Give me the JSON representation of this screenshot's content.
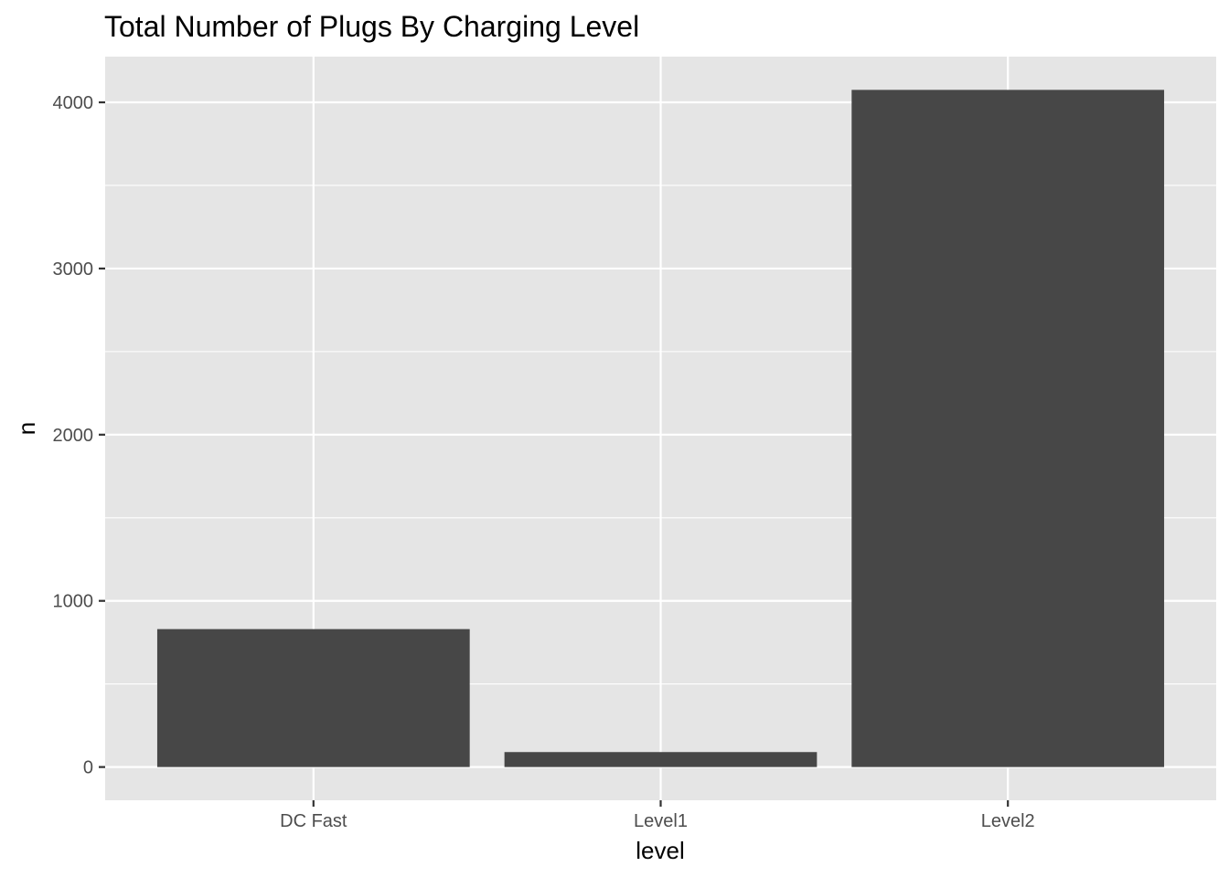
{
  "chart_data": {
    "type": "bar",
    "title": "Total Number of Plugs By Charging Level",
    "xlabel": "level",
    "ylabel": "n",
    "categories": [
      "DC Fast",
      "Level1",
      "Level2"
    ],
    "values": [
      830,
      90,
      4075
    ],
    "ylim": [
      -200,
      4275
    ],
    "yticks": [
      0,
      1000,
      2000,
      3000,
      4000
    ],
    "ytick_labels": [
      "0",
      "1000",
      "2000",
      "3000",
      "4000"
    ],
    "grid": true,
    "legend": "none",
    "colors": {
      "bar": "#474747",
      "panel": "#e5e5e5",
      "grid": "#ffffff",
      "tick": "#333333"
    }
  }
}
